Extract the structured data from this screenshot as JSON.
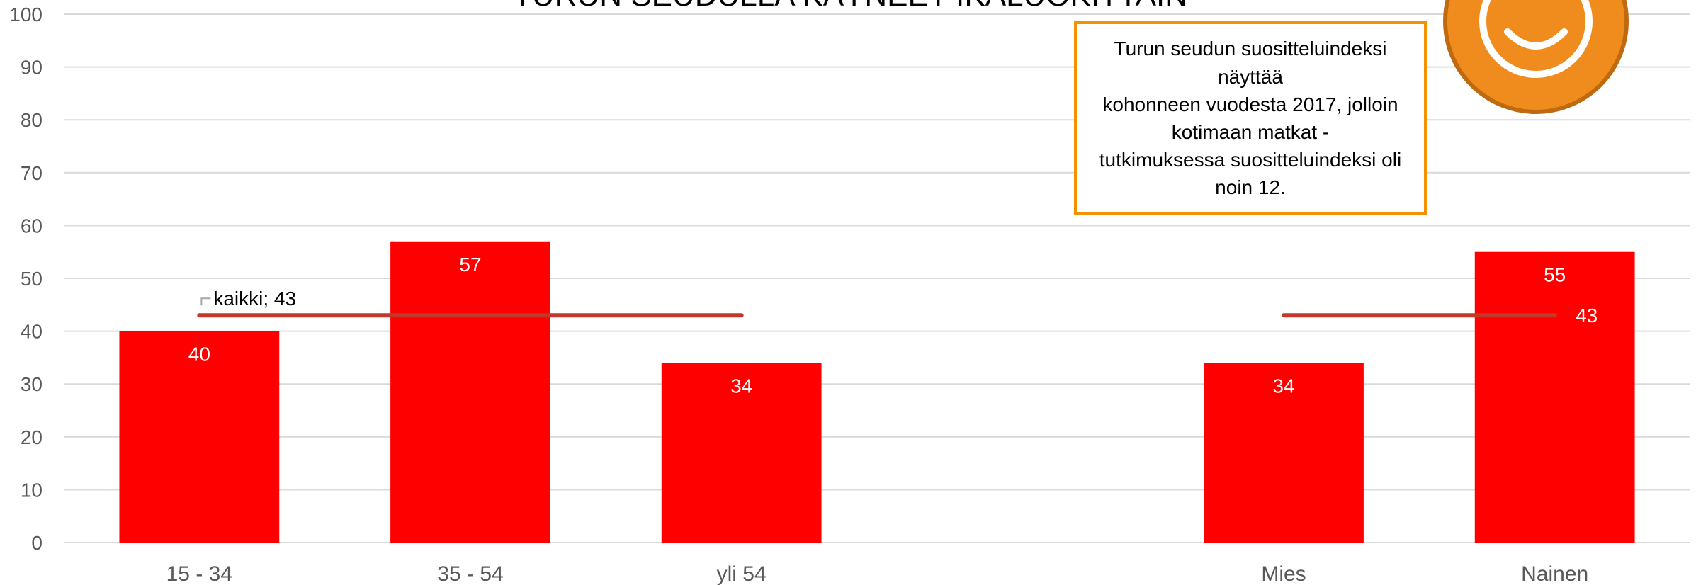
{
  "chart_data": {
    "type": "bar",
    "title": "TURUN SEUDULLA KÄYNEET IKÄLUOKITTAIN",
    "categories": [
      "15 - 34",
      "35 - 54",
      "yli 54",
      "",
      "Mies",
      "Nainen"
    ],
    "values": [
      40,
      57,
      34,
      null,
      34,
      55
    ],
    "data_labels": [
      "40",
      "57",
      "34",
      "",
      "34",
      "55"
    ],
    "reference_line": {
      "name": "kaikki",
      "value": 43,
      "groups": [
        [
          "15 - 34",
          "yli 54"
        ],
        [
          "Mies",
          "Nainen"
        ]
      ],
      "label": "kaikki;  43",
      "label_right": "43"
    },
    "ylim": [
      0,
      100
    ],
    "yticks": [
      0,
      10,
      20,
      30,
      40,
      50,
      60,
      70,
      80,
      90,
      100
    ],
    "grid": true,
    "xlabel": "",
    "ylabel": ""
  },
  "callout": {
    "text": "Turun seudun suositteluindeksi\nnäyttää\nkohonneen vuodesta 2017, jolloin\nkotimaan matkat -\ntutkimuksessa suositteluindeksi oli\nnoin 12."
  },
  "icon": "smiley-face-icon",
  "colors": {
    "bar": "#ff0000",
    "reference_line": "#c0392b",
    "callout_border": "#f39200",
    "smiley": "#f08c1e",
    "grid": "#d9d9d9"
  }
}
